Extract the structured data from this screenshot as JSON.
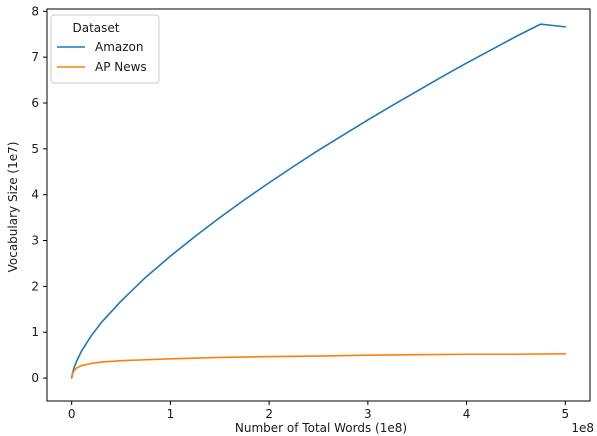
{
  "chart_data": {
    "type": "line",
    "title": "",
    "xlabel": "Number of Total Words (1e8)",
    "ylabel": "Vocabulary Size (1e7)",
    "x_offset_label": "1e8",
    "xlim": [
      -0.25,
      5.25
    ],
    "ylim": [
      -0.5,
      8.05
    ],
    "xticks": [
      0,
      1,
      2,
      3,
      4,
      5
    ],
    "yticks": [
      0,
      1,
      2,
      3,
      4,
      5,
      6,
      7,
      8
    ],
    "grid": false,
    "legend": {
      "title": "Dataset",
      "placement": "top-left"
    },
    "series": [
      {
        "name": "Amazon",
        "color": "#1f77b4",
        "x": [
          0,
          0.01,
          0.02,
          0.05,
          0.1,
          0.2,
          0.3,
          0.5,
          0.75,
          1,
          1.25,
          1.5,
          1.75,
          2,
          2.25,
          2.5,
          2.75,
          3,
          3.25,
          3.5,
          3.75,
          4,
          4.25,
          4.5,
          4.75,
          5
        ],
        "y": [
          0,
          0.12,
          0.2,
          0.37,
          0.59,
          0.93,
          1.21,
          1.68,
          2.2,
          2.66,
          3.09,
          3.5,
          3.89,
          4.26,
          4.62,
          4.97,
          5.3,
          5.63,
          5.95,
          6.26,
          6.57,
          6.87,
          7.16,
          7.45,
          7.72,
          7.66
        ]
      },
      {
        "name": "AP News",
        "color": "#ff7f0e",
        "x": [
          0,
          0.01,
          0.02,
          0.05,
          0.1,
          0.2,
          0.3,
          0.5,
          0.75,
          1,
          1.5,
          2,
          2.5,
          3,
          3.5,
          4,
          4.5,
          5
        ],
        "y": [
          0,
          0.1,
          0.15,
          0.22,
          0.27,
          0.32,
          0.35,
          0.38,
          0.4,
          0.42,
          0.45,
          0.47,
          0.48,
          0.5,
          0.51,
          0.52,
          0.52,
          0.53
        ]
      }
    ]
  }
}
